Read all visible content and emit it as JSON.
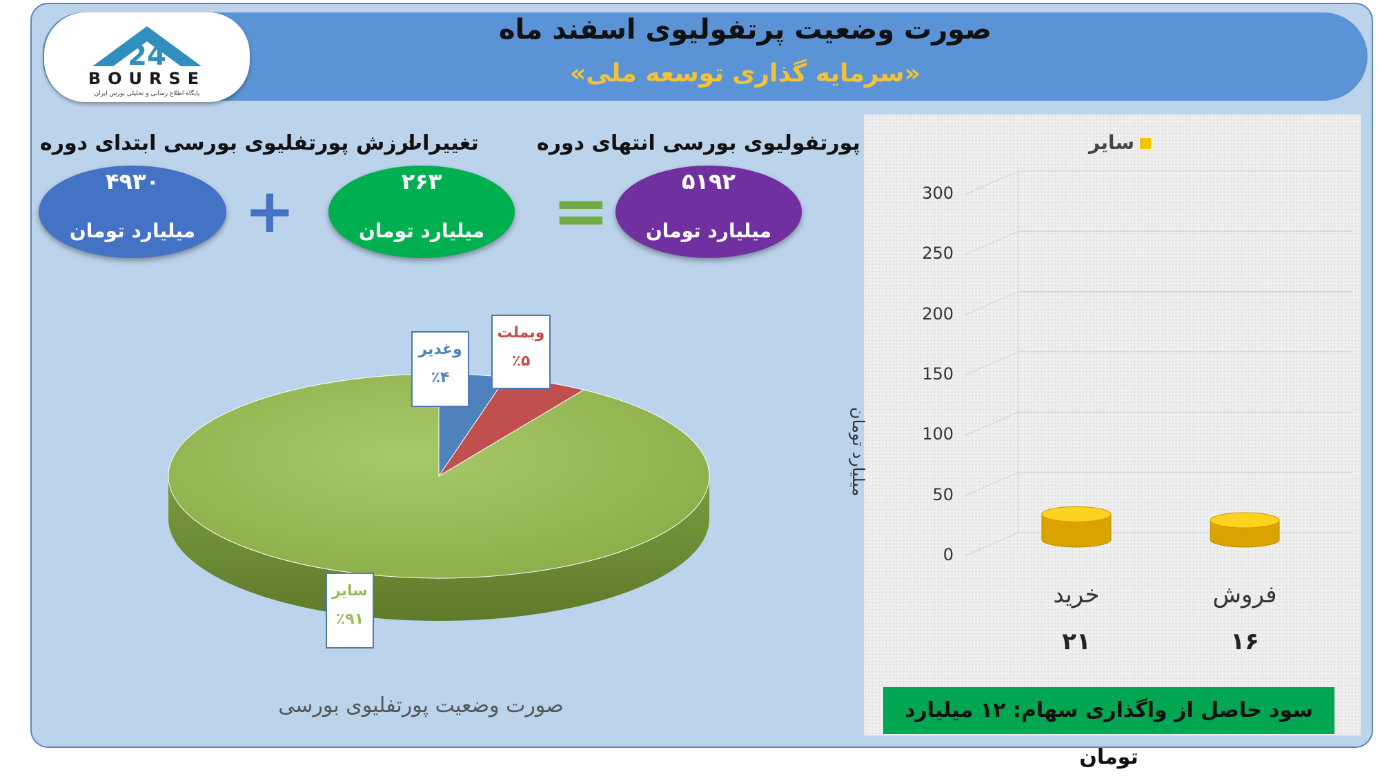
{
  "header": {
    "title": "صورت وضعیت پرتفولیوی اسفند ماه",
    "subtitle": "«سرمایه گذاری توسعه ملی»"
  },
  "logo": {
    "text": "BOURSE",
    "number": "24",
    "tagline": "پایگاه اطلاع رسانی و تحلیلی بورس ایران"
  },
  "summary": {
    "start": {
      "label": "ارزش پورتفلیوی بورسی ابتدای دوره",
      "value": "۴۹۳۰",
      "unit": "میلیارد تومان",
      "color": "#4472c4"
    },
    "change": {
      "label": "تغییرات",
      "value": "۲۶۳",
      "unit": "میلیارد تومان",
      "color": "#00b050"
    },
    "end": {
      "label": "ارزش پورتفولیوی بورسی انتهای دوره",
      "value": "۵۱۹۲",
      "unit": "میلیارد تومان",
      "color": "#7030a0"
    },
    "plus_sign": "+",
    "equals_sign": "="
  },
  "pie_caption": "صورت وضعیت پورتفلیوی بورسی",
  "bar_caption": "سود حاصل از واگذاری سهام: ۱۲ میلیارد تومان",
  "chart_data": [
    {
      "type": "pie",
      "title": "صورت وضعیت پورتفلیوی بورسی",
      "slices": [
        {
          "label": "وغدیر",
          "percent_label": "٪۴",
          "value": 4,
          "color": "#4f81bd"
        },
        {
          "label": "وبملت",
          "percent_label": "٪۵",
          "value": 5,
          "color": "#c0504d"
        },
        {
          "label": "سایر",
          "percent_label": "٪۹۱",
          "value": 91,
          "color": "#9bbb59"
        }
      ]
    },
    {
      "type": "bar",
      "categories": [
        "خرید",
        "فروش"
      ],
      "value_labels": [
        "۲۱",
        "۱۶"
      ],
      "series": [
        {
          "name": "سایر",
          "values": [
            21,
            16
          ],
          "color": "#f5c400"
        }
      ],
      "ylabel": "میلیارد تومان",
      "ylim": [
        0,
        300
      ],
      "yticks": [
        0,
        50,
        100,
        150,
        200,
        250,
        300
      ],
      "legend": "top"
    }
  ]
}
